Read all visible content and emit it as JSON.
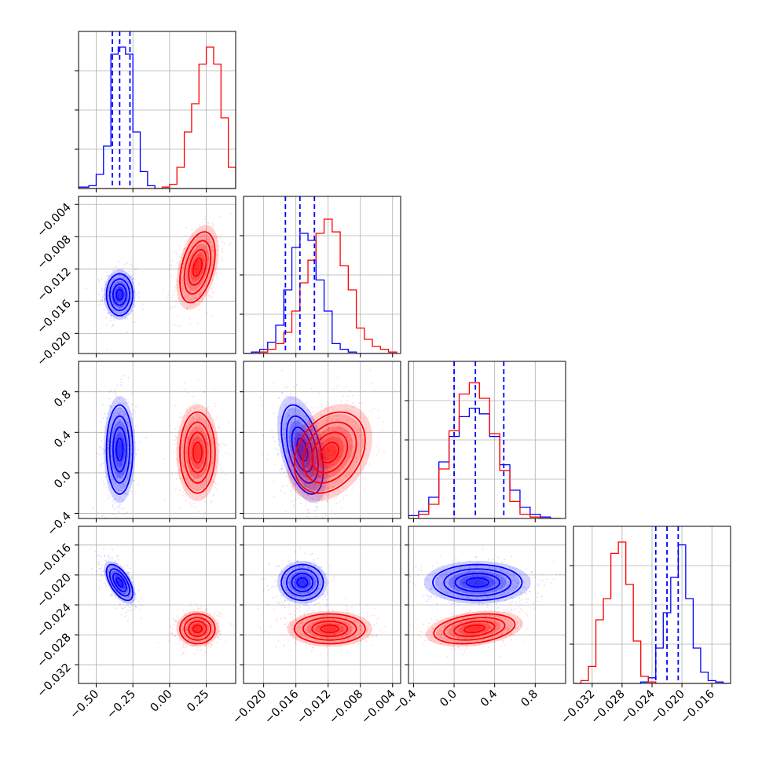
{
  "figure": {
    "type": "corner-plot",
    "colors": {
      "blue": "#0000ff",
      "red": "#ff0000",
      "grid": "#b0b0b0",
      "axis": "#000000"
    }
  },
  "chart_data": {
    "type": "corner",
    "parameters": [
      {
        "xlim": [
          -0.62,
          0.45
        ],
        "ticks": [
          -0.5,
          -0.25,
          0.0,
          0.25
        ],
        "tick_labels": [
          "−0.50",
          "−0.25",
          "0.00",
          "0.25"
        ]
      },
      {
        "xlim": [
          -0.0225,
          -0.003
        ],
        "ticks": [
          -0.02,
          -0.016,
          -0.012,
          -0.008,
          -0.004
        ],
        "tick_labels": [
          "−0.020",
          "−0.016",
          "−0.012",
          "−0.008",
          "−0.004"
        ]
      },
      {
        "xlim": [
          -0.45,
          1.1
        ],
        "ticks": [
          -0.4,
          0.0,
          0.4,
          0.8
        ],
        "tick_labels": [
          "−0.4",
          "0.0",
          "0.4",
          "0.8"
        ]
      },
      {
        "xlim": [
          -0.0345,
          -0.0135
        ],
        "ticks": [
          -0.032,
          -0.028,
          -0.024,
          -0.02,
          -0.016
        ],
        "tick_labels": [
          "−0.032",
          "−0.028",
          "−0.024",
          "−0.020",
          "−0.016"
        ]
      }
    ],
    "series": [
      {
        "color": "#0000ff",
        "means": [
          -0.34,
          -0.0152,
          0.23,
          -0.021
        ],
        "sds": [
          0.045,
          0.0013,
          0.22,
          0.0012
        ],
        "correlations": {
          "0-1": 0.0,
          "0-2": 0.0,
          "0-3": -0.6,
          "1-2": -0.45,
          "1-3": 0.0,
          "2-3": 0.0
        },
        "quantiles": [
          [
            -0.39,
            -0.34,
            -0.27
          ],
          [
            -0.0173,
            -0.0155,
            -0.0137
          ],
          [
            0.0,
            0.21,
            0.49
          ],
          [
            -0.0235,
            -0.022,
            -0.0205
          ]
        ]
      },
      {
        "color": "#ff0000",
        "means": [
          0.19,
          -0.0118,
          0.2,
          -0.0272
        ],
        "sds": [
          0.06,
          0.0022,
          0.2,
          0.001
        ],
        "correlations": {
          "0-1": 0.4,
          "0-2": 0.0,
          "0-3": 0.0,
          "1-2": 0.3,
          "1-3": 0.0,
          "2-3": 0.3
        },
        "quantiles": []
      }
    ],
    "histograms": [
      {
        "edges": [
          -0.62,
          -0.55,
          -0.5,
          -0.45,
          -0.4,
          -0.35,
          -0.3,
          -0.25,
          -0.2,
          -0.15,
          -0.1,
          -0.05,
          0.0,
          0.05,
          0.1,
          0.15,
          0.2,
          0.25,
          0.3,
          0.35,
          0.4,
          0.45
        ],
        "blue": [
          0.01,
          0.02,
          0.1,
          0.3,
          0.95,
          1.0,
          0.95,
          0.4,
          0.12,
          0.02,
          0.0,
          0.0,
          0.0,
          0.0,
          0.0,
          0.0,
          0.0,
          0.0,
          0.0,
          0.0,
          0.0
        ],
        "red": [
          0.0,
          0.0,
          0.0,
          0.0,
          0.0,
          0.0,
          0.0,
          0.0,
          0.0,
          0.0,
          0.0,
          0.01,
          0.03,
          0.15,
          0.4,
          0.6,
          0.88,
          1.0,
          0.88,
          0.5,
          0.15
        ]
      },
      {
        "edges": [
          -0.0225,
          -0.0215,
          -0.0205,
          -0.0195,
          -0.0185,
          -0.0175,
          -0.0165,
          -0.0155,
          -0.0145,
          -0.0135,
          -0.0125,
          -0.0115,
          -0.0105,
          -0.0095,
          -0.0085,
          -0.0075,
          -0.0065,
          -0.0055,
          -0.0045,
          -0.0035,
          -0.003
        ],
        "blue": [
          0.0,
          0.01,
          0.03,
          0.08,
          0.2,
          0.45,
          0.75,
          0.85,
          0.8,
          0.52,
          0.3,
          0.07,
          0.03,
          0.01,
          0.0,
          0.0,
          0.0,
          0.0,
          0.0
        ],
        "red": [
          0.0,
          0.0,
          0.01,
          0.03,
          0.07,
          0.15,
          0.3,
          0.5,
          0.66,
          0.85,
          0.95,
          0.86,
          0.62,
          0.45,
          0.18,
          0.1,
          0.05,
          0.03,
          0.01
        ]
      },
      {
        "edges": [
          -0.45,
          -0.35,
          -0.25,
          -0.15,
          -0.05,
          0.05,
          0.15,
          0.25,
          0.35,
          0.45,
          0.55,
          0.65,
          0.75,
          0.85,
          0.95,
          1.05,
          1.1
        ],
        "blue": [
          0.02,
          0.05,
          0.15,
          0.4,
          0.58,
          0.72,
          0.78,
          0.74,
          0.58,
          0.38,
          0.2,
          0.08,
          0.03,
          0.01,
          0.0
        ],
        "red": [
          0.0,
          0.03,
          0.1,
          0.35,
          0.62,
          0.88,
          0.96,
          0.85,
          0.6,
          0.34,
          0.12,
          0.03,
          0.01,
          0.0,
          0.0
        ]
      },
      {
        "edges": [
          -0.0345,
          -0.0335,
          -0.0325,
          -0.0315,
          -0.0305,
          -0.0295,
          -0.0285,
          -0.0275,
          -0.0265,
          -0.0255,
          -0.0245,
          -0.0235,
          -0.0225,
          -0.0215,
          -0.0205,
          -0.0195,
          -0.0185,
          -0.0175,
          -0.0165,
          -0.0155,
          -0.0145,
          -0.0135
        ],
        "blue": [
          0.0,
          0.0,
          0.0,
          0.0,
          0.0,
          0.0,
          0.0,
          0.0,
          0.0,
          0.01,
          0.04,
          0.25,
          0.5,
          0.75,
          0.98,
          0.6,
          0.25,
          0.08,
          0.02,
          0.01,
          0.0
        ],
        "red": [
          0.0,
          0.02,
          0.12,
          0.45,
          0.6,
          0.92,
          1.0,
          0.7,
          0.3,
          0.05,
          0.01,
          0.0,
          0.0,
          0.0,
          0.0,
          0.0,
          0.0,
          0.0,
          0.0,
          0.0,
          0.0
        ]
      }
    ],
    "grid": true
  }
}
